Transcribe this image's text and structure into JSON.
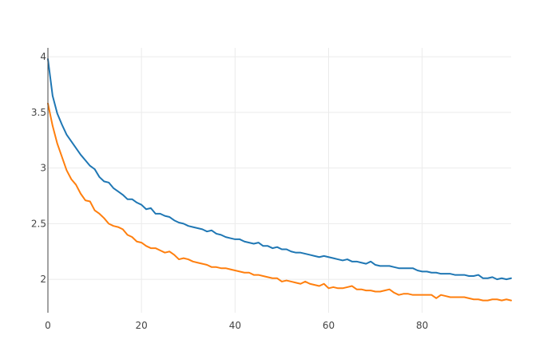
{
  "chart_data": {
    "type": "line",
    "title": "",
    "xlabel": "",
    "ylabel": "",
    "xlim": [
      0,
      99
    ],
    "ylim": [
      1.7,
      4.08
    ],
    "grid": true,
    "legend": "none",
    "x_ticks": [
      0,
      20,
      40,
      60,
      80
    ],
    "x_tick_labels": [
      "0",
      "20",
      "40",
      "60",
      "80"
    ],
    "y_ticks": [
      2,
      2.5,
      3,
      3.5,
      4
    ],
    "y_tick_labels": [
      "2",
      "2.5",
      "3",
      "3.5",
      "4"
    ],
    "x_start": 0,
    "x_step": 1,
    "series": [
      {
        "color": "#1f77b4",
        "values": [
          3.98,
          3.65,
          3.49,
          3.39,
          3.3,
          3.24,
          3.18,
          3.12,
          3.07,
          3.02,
          2.99,
          2.92,
          2.88,
          2.87,
          2.82,
          2.79,
          2.76,
          2.72,
          2.72,
          2.69,
          2.67,
          2.63,
          2.64,
          2.59,
          2.59,
          2.57,
          2.56,
          2.53,
          2.51,
          2.5,
          2.48,
          2.47,
          2.46,
          2.45,
          2.43,
          2.44,
          2.41,
          2.4,
          2.38,
          2.37,
          2.36,
          2.36,
          2.34,
          2.33,
          2.32,
          2.33,
          2.3,
          2.3,
          2.28,
          2.29,
          2.27,
          2.27,
          2.25,
          2.24,
          2.24,
          2.23,
          2.22,
          2.21,
          2.2,
          2.21,
          2.2,
          2.19,
          2.18,
          2.17,
          2.18,
          2.16,
          2.16,
          2.15,
          2.14,
          2.16,
          2.13,
          2.12,
          2.12,
          2.12,
          2.11,
          2.1,
          2.1,
          2.1,
          2.1,
          2.08,
          2.07,
          2.07,
          2.06,
          2.06,
          2.05,
          2.05,
          2.05,
          2.04,
          2.04,
          2.04,
          2.03,
          2.03,
          2.04,
          2.01,
          2.01,
          2.02,
          2.0,
          2.01,
          2.0,
          2.01
        ]
      },
      {
        "color": "#ff7f0e",
        "values": [
          3.58,
          3.38,
          3.22,
          3.1,
          2.98,
          2.9,
          2.85,
          2.77,
          2.71,
          2.7,
          2.62,
          2.59,
          2.55,
          2.5,
          2.48,
          2.47,
          2.45,
          2.4,
          2.38,
          2.34,
          2.33,
          2.3,
          2.28,
          2.28,
          2.26,
          2.24,
          2.25,
          2.22,
          2.18,
          2.19,
          2.18,
          2.16,
          2.15,
          2.14,
          2.13,
          2.11,
          2.11,
          2.1,
          2.1,
          2.09,
          2.08,
          2.07,
          2.06,
          2.06,
          2.04,
          2.04,
          2.03,
          2.02,
          2.01,
          2.01,
          1.98,
          1.99,
          1.98,
          1.97,
          1.96,
          1.98,
          1.96,
          1.95,
          1.94,
          1.96,
          1.92,
          1.93,
          1.92,
          1.92,
          1.93,
          1.94,
          1.91,
          1.91,
          1.9,
          1.9,
          1.89,
          1.89,
          1.9,
          1.91,
          1.88,
          1.86,
          1.87,
          1.87,
          1.86,
          1.86,
          1.86,
          1.86,
          1.86,
          1.83,
          1.86,
          1.85,
          1.84,
          1.84,
          1.84,
          1.84,
          1.83,
          1.82,
          1.82,
          1.81,
          1.81,
          1.82,
          1.82,
          1.81,
          1.82,
          1.81
        ]
      }
    ]
  }
}
